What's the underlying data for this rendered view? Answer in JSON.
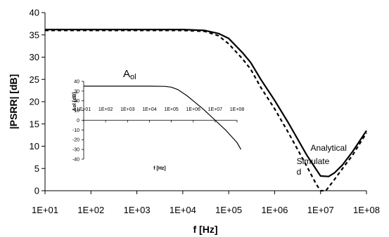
{
  "chart_data": [
    {
      "type": "line",
      "title": "",
      "xlabel": "f [Hz]",
      "ylabel": "|PSRR| [dB]",
      "x_scale": "log",
      "xlim": [
        10,
        100000000
      ],
      "ylim": [
        0,
        40
      ],
      "x_tick_labels": [
        "1E+01",
        "1E+02",
        "1E+03",
        "1E+04",
        "1E+05",
        "1E+06",
        "1E+07",
        "1E+08"
      ],
      "y_ticks": [
        0,
        5,
        10,
        15,
        20,
        25,
        30,
        35,
        40
      ],
      "grid": false,
      "legend": "none",
      "annotations": [
        {
          "text": "Simulate\nd",
          "x": 3000000,
          "y": 6
        },
        {
          "text": "Analytical",
          "x": 15000000,
          "y": 9
        }
      ],
      "series": [
        {
          "name": "Analytical",
          "style": "solid",
          "color": "#000000",
          "x": [
            10,
            100,
            1000,
            10000,
            30000,
            60000,
            100000,
            200000,
            300000,
            500000,
            1000000,
            2000000,
            5000000,
            8000000,
            10000000,
            15000000,
            20000000,
            30000000,
            50000000,
            100000000
          ],
          "y": [
            36.2,
            36.2,
            36.2,
            36.2,
            36.0,
            35.3,
            34.2,
            31.0,
            28.8,
            25.0,
            20.3,
            15.2,
            8.0,
            4.8,
            3.3,
            3.2,
            4.0,
            5.8,
            8.8,
            13.5
          ]
        },
        {
          "name": "Simulated",
          "style": "dashed",
          "color": "#000000",
          "x": [
            10,
            100,
            1000,
            10000,
            30000,
            60000,
            100000,
            200000,
            300000,
            500000,
            1000000,
            2000000,
            5000000,
            8000000,
            10000000,
            13000000,
            20000000,
            30000000,
            50000000,
            100000000
          ],
          "y": [
            36.0,
            36.0,
            36.0,
            36.0,
            35.8,
            34.8,
            33.0,
            29.6,
            27.3,
            23.2,
            18.4,
            13.0,
            5.5,
            1.5,
            0.0,
            0.0,
            2.5,
            5.0,
            8.0,
            13.0
          ]
        }
      ]
    },
    {
      "type": "line",
      "title": "Aol",
      "xlabel": "f [Hz]",
      "ylabel": "Aol [dB]",
      "x_scale": "log",
      "xlim": [
        10,
        100000000
      ],
      "ylim": [
        -40,
        40
      ],
      "x_tick_labels": [
        "1E+01",
        "1E+02",
        "1E+03",
        "1E+04",
        "1E+05",
        "1E+06",
        "1E+07",
        "1E+08"
      ],
      "y_ticks": [
        -40,
        -30,
        -20,
        -10,
        0,
        10,
        20,
        30,
        40
      ],
      "grid": false,
      "legend": "none",
      "series": [
        {
          "name": "",
          "style": "solid",
          "color": "#000000",
          "x": [
            10,
            100,
            1000,
            10000,
            50000,
            100000,
            200000,
            500000,
            1000000,
            3000000,
            10000000,
            30000000,
            100000000,
            150000000
          ],
          "y": [
            35,
            35,
            35,
            35,
            34.8,
            34.0,
            31.5,
            25.5,
            20.0,
            11.0,
            0.0,
            -10.0,
            -23.0,
            -30.0
          ]
        }
      ]
    }
  ]
}
